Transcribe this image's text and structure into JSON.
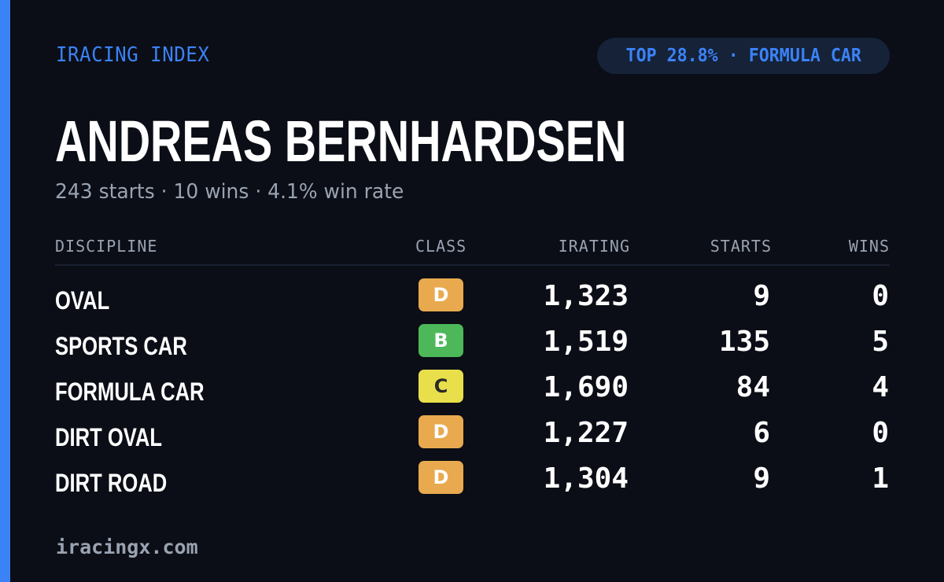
{
  "brand": "IRACING INDEX",
  "rank_pill": "TOP 28.8% · FORMULA CAR",
  "driver_name": "ANDREAS BERNHARDSEN",
  "summary": "243 starts · 10 wins · 4.1% win rate",
  "headers": {
    "discipline": "DISCIPLINE",
    "class": "CLASS",
    "irating": "IRATING",
    "starts": "STARTS",
    "wins": "WINS"
  },
  "rows": [
    {
      "discipline": "OVAL",
      "class": "D",
      "irating": "1,323",
      "starts": "9",
      "wins": "0"
    },
    {
      "discipline": "SPORTS CAR",
      "class": "B",
      "irating": "1,519",
      "starts": "135",
      "wins": "5"
    },
    {
      "discipline": "FORMULA CAR",
      "class": "C",
      "irating": "1,690",
      "starts": "84",
      "wins": "4"
    },
    {
      "discipline": "DIRT OVAL",
      "class": "D",
      "irating": "1,227",
      "starts": "6",
      "wins": "0"
    },
    {
      "discipline": "DIRT ROAD",
      "class": "D",
      "irating": "1,304",
      "starts": "9",
      "wins": "1"
    }
  ],
  "class_colors": {
    "B": "#4cb85a",
    "C": "#e9df4a",
    "D": "#e8a94f"
  },
  "class_text_colors": {
    "B": "#ffffff",
    "C": "#2a2a2a",
    "D": "#ffffff"
  },
  "accent_color": "#3b82f6",
  "footer": "iracingx.com"
}
